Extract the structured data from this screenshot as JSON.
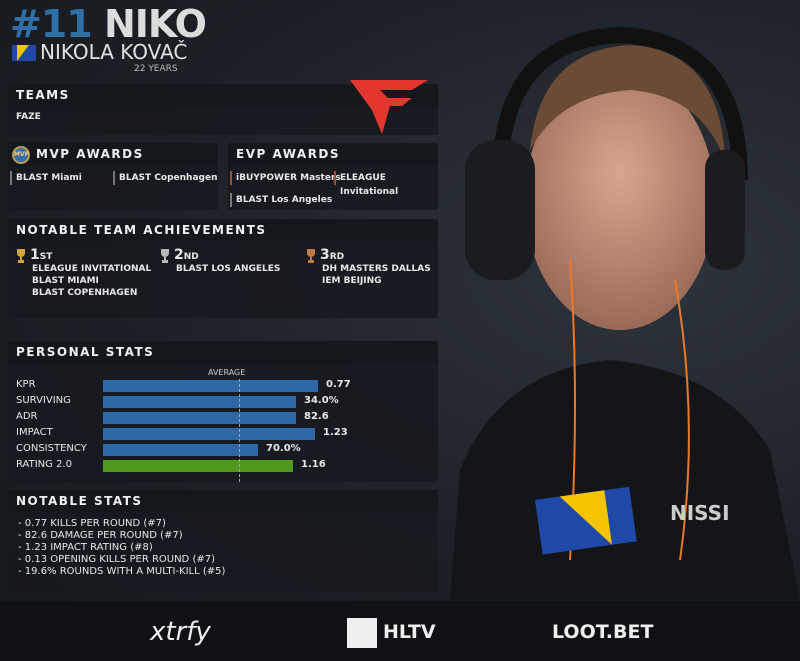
{
  "player": {
    "number": "#11",
    "nickname": "NIKO",
    "real_name": "NIKOLA KOVAČ",
    "age": "22 YEARS",
    "flag": "bosnia-herzegovina"
  },
  "teams": {
    "title": "TEAMS",
    "team": "FAZE",
    "logo": "faze-clan-logo"
  },
  "mvp": {
    "title": "MVP AWARDS",
    "badge": "MVP",
    "items": [
      "BLAST Miami",
      "BLAST Copenhagen"
    ]
  },
  "evp": {
    "title": "EVP AWARDS",
    "items": [
      "iBUYPOWER Masters",
      "ELEAGUE Invitational",
      "BLAST Los Angeles"
    ]
  },
  "achievements": {
    "title": "NOTABLE TEAM ACHIEVEMENTS",
    "places": [
      {
        "place": "1",
        "suffix": "ST",
        "color": "#d4a63a",
        "events": [
          "ELEAGUE INVITATIONAL",
          "BLAST MIAMI",
          "BLAST COPENHAGEN"
        ]
      },
      {
        "place": "2",
        "suffix": "ND",
        "color": "#b8b8b8",
        "events": [
          "BLAST LOS ANGELES"
        ]
      },
      {
        "place": "3",
        "suffix": "RD",
        "color": "#c07a4a",
        "events": [
          "DH MASTERS DALLAS",
          "IEM BEIJING"
        ]
      }
    ]
  },
  "personal_stats": {
    "title": "PERSONAL STATS",
    "average_label": "AVERAGE",
    "average_level": 0.5,
    "rows": [
      {
        "label": "KPR",
        "value": "0.77",
        "fill": 0.79,
        "color": "#2e67a3"
      },
      {
        "label": "SURVIVING",
        "value": "34.0%",
        "fill": 0.71,
        "color": "#2e67a3"
      },
      {
        "label": "ADR",
        "value": "82.6",
        "fill": 0.71,
        "color": "#2e67a3"
      },
      {
        "label": "IMPACT",
        "value": "1.23",
        "fill": 0.78,
        "color": "#2e67a3"
      },
      {
        "label": "CONSISTENCY",
        "value": "70.0%",
        "fill": 0.57,
        "color": "#2e67a3"
      },
      {
        "label": "RATING 2.0",
        "value": "1.16",
        "fill": 0.7,
        "color": "#4f9a1e"
      }
    ]
  },
  "notable_stats": {
    "title": "NOTABLE STATS",
    "items": [
      "- 0.77 KILLS PER ROUND (#7)",
      "- 82.6 DAMAGE PER ROUND (#7)",
      "- 1.23 IMPACT RATING (#8)",
      "- 0.13 OPENING KILLS PER ROUND (#7)",
      "- 19.6% ROUNDS WITH A MULTI-KILL (#5)"
    ]
  },
  "footer": {
    "sponsors": [
      "xtrfy",
      "HLTV",
      "LOOT.BET"
    ]
  }
}
